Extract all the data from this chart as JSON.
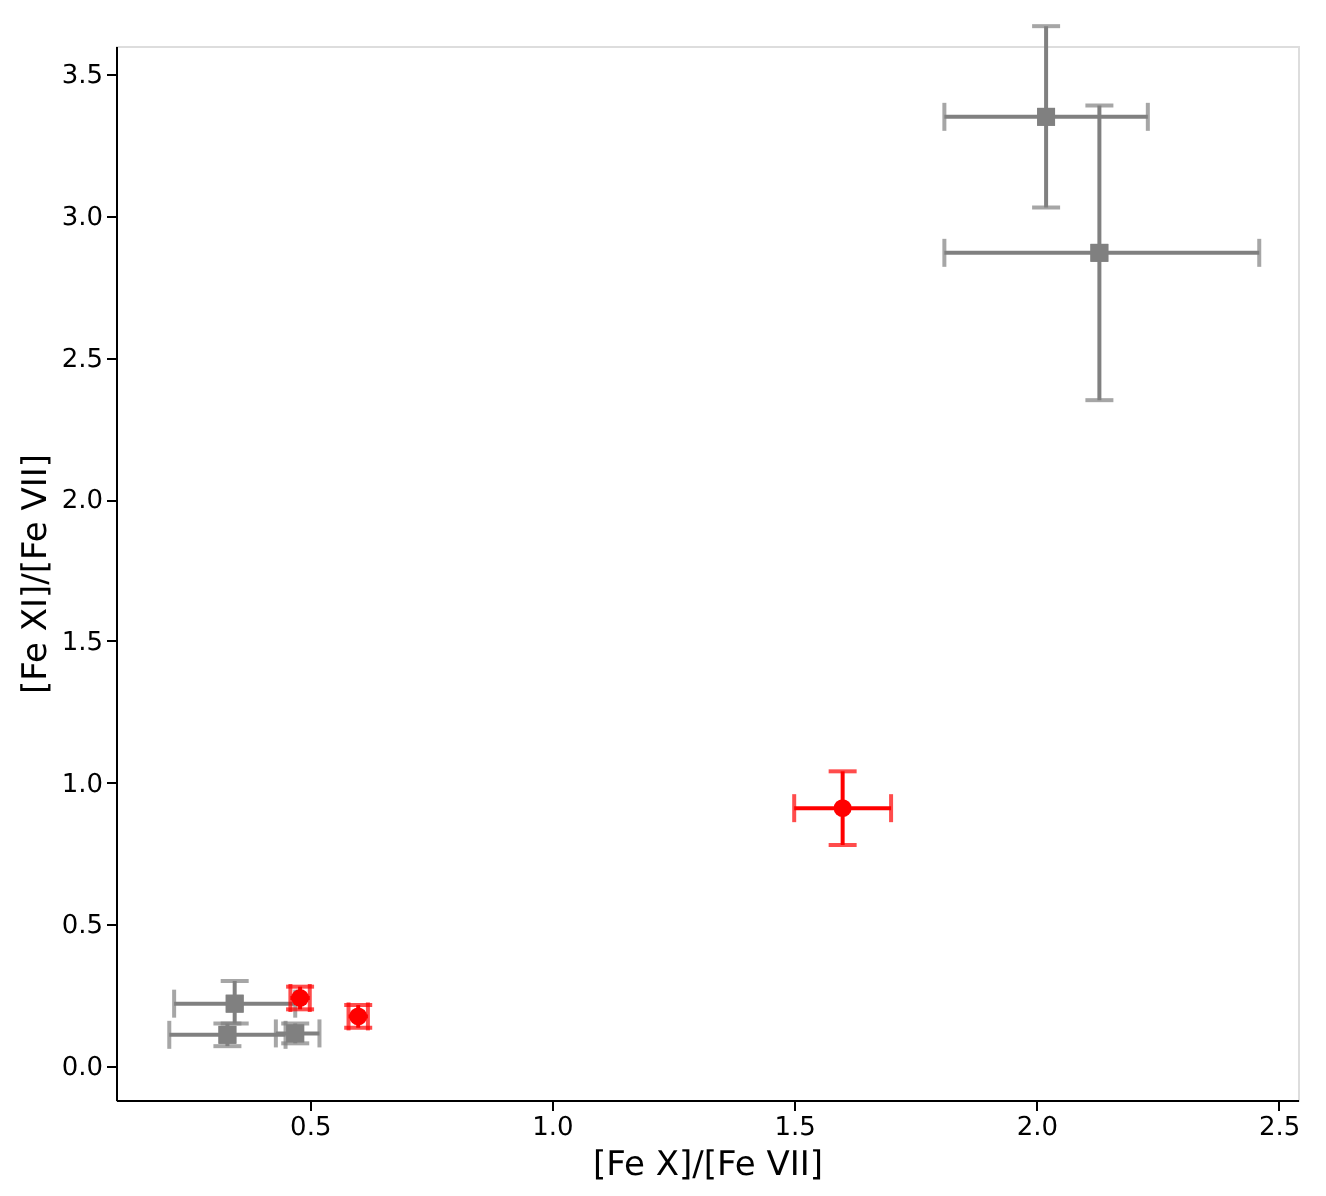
{
  "chart_data": {
    "type": "scatter",
    "xlabel": "[Fe X]/[Fe VII]",
    "ylabel": "[Fe XI]/[Fe VII]",
    "xlim": [
      0.1,
      2.54
    ],
    "ylim": [
      -0.12,
      3.6
    ],
    "xticks": [
      0.5,
      {
        "value": 1,
        "label": "1.0"
      },
      1.5,
      {
        "value": 2,
        "label": "2.0"
      },
      2.5
    ],
    "yticks": [
      {
        "value": 0,
        "label": "0.0"
      },
      0.5,
      {
        "value": 1,
        "label": "1.0"
      },
      1.5,
      {
        "value": 2,
        "label": "2.0"
      },
      2.5,
      {
        "value": 3,
        "label": "3.0"
      },
      3.5
    ],
    "series": [
      {
        "color": "#808080",
        "marker": "square",
        "x": [
          2.02,
          2.13,
          0.345,
          0.33,
          0.47
        ],
        "values": [
          3.35,
          2.87,
          0.22,
          0.11,
          0.115
        ],
        "xerrors": [
          [
            1.81,
            2.23
          ],
          [
            1.81,
            2.46
          ],
          [
            0.22,
            0.47
          ],
          [
            0.21,
            0.45
          ],
          [
            0.43,
            0.52
          ]
        ],
        "errors": [
          [
            3.03,
            3.67
          ],
          [
            2.35,
            3.39
          ],
          [
            0.15,
            0.3
          ],
          [
            0.07,
            0.15
          ],
          [
            0.08,
            0.15
          ]
        ]
      },
      {
        "color": "#ff0000",
        "marker": "circle",
        "x": [
          1.6,
          0.48,
          0.6
        ],
        "values": [
          0.91,
          0.24,
          0.175
        ],
        "xerrors": [
          [
            1.5,
            1.7
          ],
          [
            0.46,
            0.5
          ],
          [
            0.58,
            0.62
          ]
        ],
        "errors": [
          [
            0.78,
            1.04
          ],
          [
            0.2,
            0.28
          ],
          [
            0.135,
            0.215
          ]
        ]
      }
    ]
  }
}
